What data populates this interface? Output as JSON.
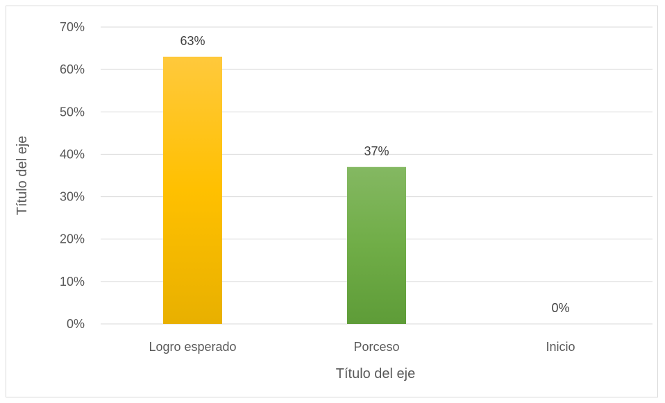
{
  "chart_data": {
    "type": "bar",
    "title": "",
    "categories": [
      "Logro esperado",
      "Porceso",
      "Inicio"
    ],
    "values": [
      63,
      37,
      0
    ],
    "data_labels": [
      "63%",
      "37%",
      "0%"
    ],
    "xlabel": "Título del eje",
    "ylabel": "Título del eje",
    "ylim": [
      0,
      70
    ],
    "yticks": [
      0,
      10,
      20,
      30,
      40,
      50,
      60,
      70
    ],
    "ytick_labels": [
      "0%",
      "10%",
      "20%",
      "30%",
      "40%",
      "50%",
      "60%",
      "70%"
    ],
    "grid": true,
    "legend": "none",
    "bar_colors": [
      "#ffc000",
      "#70ad47",
      "#4472c4"
    ]
  }
}
